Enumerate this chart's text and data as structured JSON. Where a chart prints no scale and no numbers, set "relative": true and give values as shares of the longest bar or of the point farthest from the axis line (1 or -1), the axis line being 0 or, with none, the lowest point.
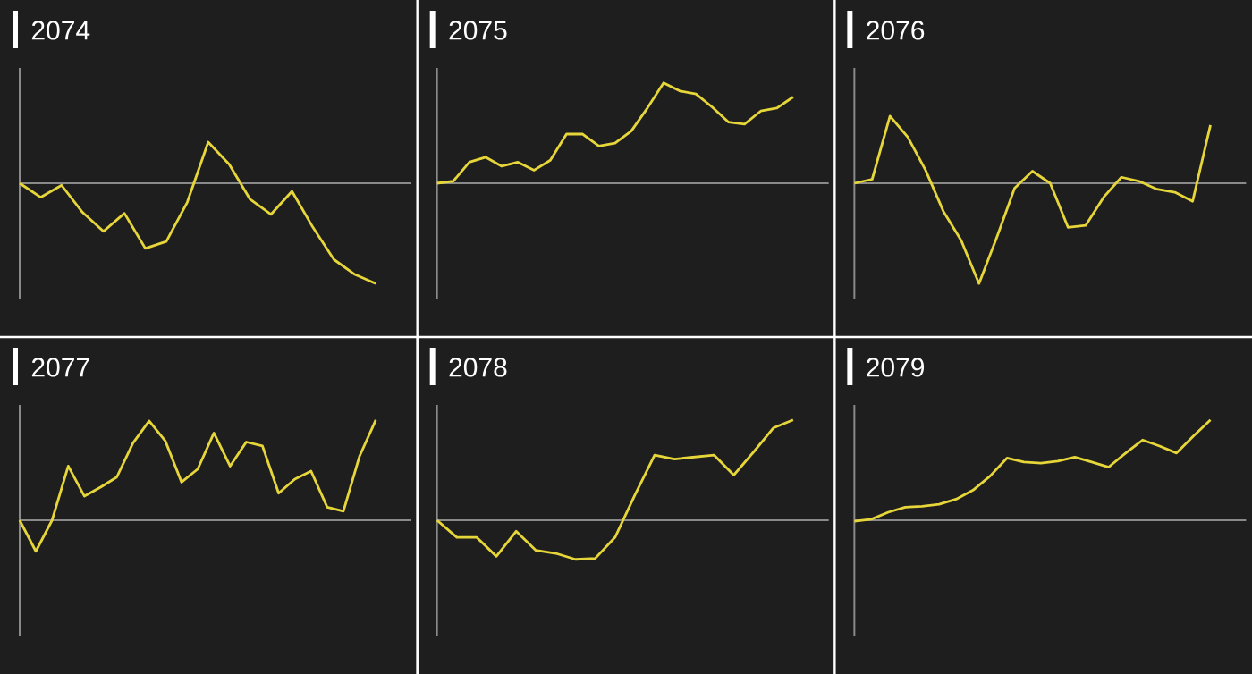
{
  "chart_data": [
    {
      "type": "line",
      "title": "2074",
      "relative": true,
      "color": "#e6d63a",
      "categories": [
        null,
        null,
        null,
        null,
        null,
        null,
        null,
        null,
        null,
        null,
        null,
        null,
        null,
        null,
        null,
        null,
        null,
        null
      ],
      "values": [
        0,
        -0.14,
        -0.02,
        -0.29,
        -0.48,
        -0.3,
        -0.65,
        -0.58,
        -0.19,
        0.41,
        0.19,
        -0.16,
        -0.31,
        -0.08,
        -0.44,
        -0.76,
        -0.91,
        -1
      ]
    },
    {
      "type": "line",
      "title": "2075",
      "relative": true,
      "color": "#e6d63a",
      "categories": [
        null,
        null,
        null,
        null,
        null,
        null,
        null,
        null,
        null,
        null,
        null,
        null,
        null,
        null,
        null,
        null,
        null,
        null,
        null,
        null,
        null,
        null,
        null
      ],
      "values": [
        0,
        0.02,
        0.21,
        0.26,
        0.17,
        0.21,
        0.13,
        0.23,
        0.49,
        0.49,
        0.37,
        0.4,
        0.52,
        0.75,
        1,
        0.92,
        0.89,
        0.76,
        0.61,
        0.59,
        0.72,
        0.75,
        0.86
      ]
    },
    {
      "type": "line",
      "title": "2076",
      "relative": true,
      "color": "#e6d63a",
      "categories": [
        null,
        null,
        null,
        null,
        null,
        null,
        null,
        null,
        null,
        null,
        null,
        null,
        null,
        null,
        null,
        null,
        null,
        null,
        null,
        null,
        null
      ],
      "values": [
        0,
        0.04,
        0.67,
        0.46,
        0.13,
        -0.28,
        -0.57,
        -1,
        -0.54,
        -0.05,
        0.12,
        0,
        -0.44,
        -0.42,
        -0.14,
        0.06,
        0.02,
        -0.06,
        -0.09,
        -0.18,
        0.58
      ]
    },
    {
      "type": "line",
      "title": "2077",
      "relative": true,
      "color": "#e6d63a",
      "categories": [
        null,
        null,
        null,
        null,
        null,
        null,
        null,
        null,
        null,
        null,
        null,
        null,
        null,
        null,
        null,
        null,
        null,
        null,
        null,
        null,
        null,
        null,
        null
      ],
      "values": [
        0,
        -0.31,
        0,
        0.54,
        0.24,
        0.33,
        0.43,
        0.77,
        0.99,
        0.79,
        0.38,
        0.51,
        0.87,
        0.54,
        0.78,
        0.74,
        0.27,
        0.41,
        0.49,
        0.13,
        0.09,
        0.64,
        1
      ]
    },
    {
      "type": "line",
      "title": "2078",
      "relative": true,
      "color": "#e6d63a",
      "categories": [
        null,
        null,
        null,
        null,
        null,
        null,
        null,
        null,
        null,
        null,
        null,
        null,
        null,
        null,
        null,
        null,
        null,
        null,
        null
      ],
      "values": [
        0,
        -0.17,
        -0.17,
        -0.36,
        -0.11,
        -0.3,
        -0.33,
        -0.39,
        -0.38,
        -0.17,
        0.25,
        0.65,
        0.61,
        0.63,
        0.65,
        0.45,
        0.68,
        0.92,
        1
      ]
    },
    {
      "type": "line",
      "title": "2079",
      "relative": true,
      "color": "#e6d63a",
      "categories": [
        null,
        null,
        null,
        null,
        null,
        null,
        null,
        null,
        null,
        null,
        null,
        null,
        null,
        null,
        null,
        null,
        null,
        null,
        null,
        null,
        null,
        null
      ],
      "values": [
        -0.01,
        0.01,
        0.08,
        0.13,
        0.14,
        0.16,
        0.21,
        0.3,
        0.44,
        0.62,
        0.58,
        0.57,
        0.59,
        0.63,
        0.58,
        0.53,
        0.67,
        0.8,
        0.74,
        0.67,
        0.84,
        1
      ]
    }
  ]
}
